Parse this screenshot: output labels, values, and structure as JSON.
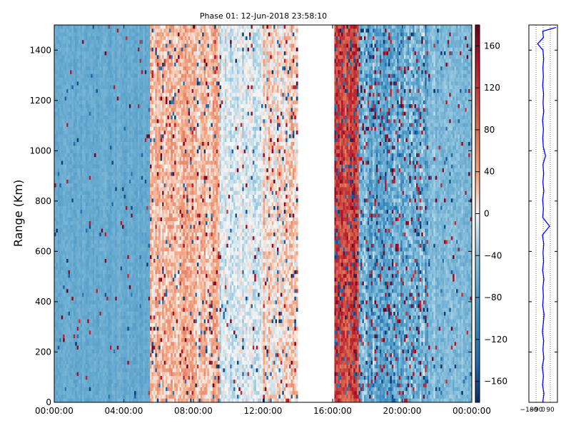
{
  "title": "Phase 01: 12-Jun-2018 23:58:10",
  "chart_data": [
    {
      "type": "heatmap",
      "title": "Phase 01: 12-Jun-2018 23:58:10",
      "xlabel": "",
      "ylabel": "Range (Km)",
      "x_range": [
        "00:00:00",
        "24:00:00"
      ],
      "x_ticks": [
        "00:00:00",
        "04:00:00",
        "08:00:00",
        "12:00:00",
        "16:00:00",
        "20:00:00",
        "00:00:00"
      ],
      "y_range": [
        0,
        1500
      ],
      "y_ticks": [
        0,
        200,
        400,
        600,
        800,
        1000,
        1200,
        1400
      ],
      "colorbar": {
        "range": [
          -180,
          180
        ],
        "ticks": [
          160,
          120,
          80,
          40,
          0,
          -40,
          -80,
          -120,
          -160
        ],
        "tick_labels": [
          "160",
          "120",
          "80",
          "40",
          "0",
          "−40",
          "−80",
          "−120",
          "−160"
        ],
        "colormap": "RdBu_r",
        "low_color": "#053061",
        "mid_color": "#f7f7f7",
        "high_color": "#67001f"
      },
      "time_segments": [
        {
          "start_hour": 0.0,
          "end_hour": 5.5,
          "mean": -65,
          "spread": 18,
          "outlier_rate": 0.02
        },
        {
          "start_hour": 5.5,
          "end_hour": 9.5,
          "mean": 25,
          "spread": 55,
          "outlier_rate": 0.06
        },
        {
          "start_hour": 9.5,
          "end_hour": 12.0,
          "mean": -10,
          "spread": 40,
          "outlier_rate": 0.03
        },
        {
          "start_hour": 12.0,
          "end_hour": 14.0,
          "mean": 15,
          "spread": 60,
          "outlier_rate": 0.08
        },
        {
          "start_hour": 14.0,
          "end_hour": 16.1,
          "mean": null,
          "spread": 0,
          "outlier_rate": 0
        },
        {
          "start_hour": 16.1,
          "end_hour": 17.5,
          "mean": 110,
          "spread": 70,
          "outlier_rate": 0.2
        },
        {
          "start_hour": 17.5,
          "end_hour": 21.5,
          "mean": -60,
          "spread": 70,
          "outlier_rate": 0.15
        },
        {
          "start_hour": 21.5,
          "end_hour": 24.0,
          "mean": -45,
          "spread": 35,
          "outlier_rate": 0.04
        }
      ]
    },
    {
      "type": "line",
      "xlim": [
        -180,
        180
      ],
      "x_ticks": [
        -180,
        -90,
        0,
        90
      ],
      "x_tick_labels": [
        "−180",
        "−90",
        "0",
        "90"
      ],
      "ylim": [
        0,
        1500
      ],
      "grid": true,
      "series": [
        {
          "color": "#0000ff",
          "x": [
            -5,
            10,
            -8,
            4,
            -12,
            8,
            -3,
            6,
            -10,
            2,
            12,
            -6,
            3,
            -4,
            9,
            -7,
            5,
            -2,
            7,
            -9,
            80,
            -5,
            3,
            -6,
            8,
            -4,
            6,
            -3,
            30,
            2,
            -5,
            4,
            -8,
            7,
            -2,
            5,
            -6,
            3,
            -4,
            6,
            -3,
            -70,
            4,
            -5,
            160
          ],
          "y": [
            0,
            35,
            70,
            105,
            140,
            175,
            210,
            245,
            280,
            315,
            350,
            385,
            420,
            455,
            490,
            525,
            560,
            595,
            630,
            665,
            700,
            735,
            770,
            805,
            840,
            875,
            910,
            945,
            980,
            1015,
            1050,
            1085,
            1120,
            1155,
            1190,
            1225,
            1260,
            1295,
            1330,
            1365,
            1400,
            1425,
            1450,
            1475,
            1490
          ]
        }
      ]
    }
  ]
}
